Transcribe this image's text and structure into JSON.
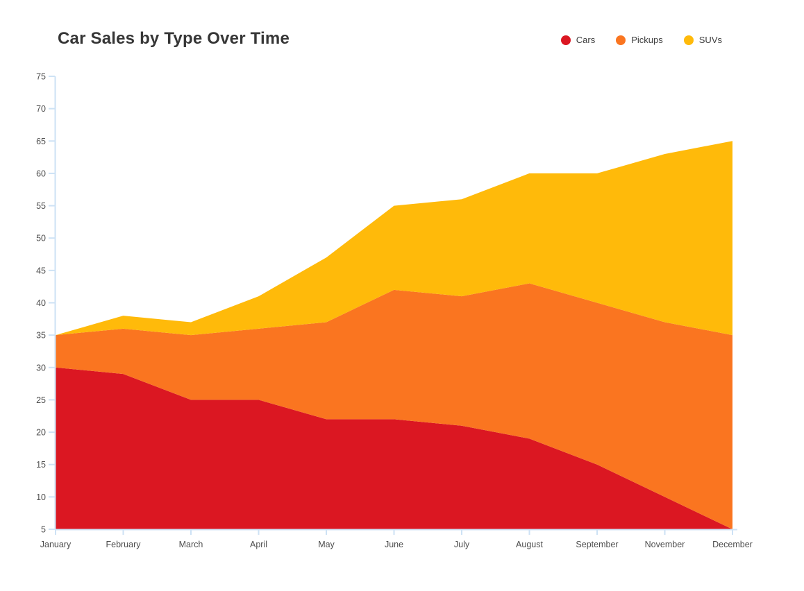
{
  "title": "Car Sales by Type Over Time",
  "legend": [
    {
      "label": "Cars",
      "color": "#DB1722"
    },
    {
      "label": "Pickups",
      "color": "#FA7520"
    },
    {
      "label": "SUVs",
      "color": "#FFBA0A"
    }
  ],
  "chart_data": {
    "type": "area",
    "stacked": true,
    "title": "Car Sales by Type Over Time",
    "categories": [
      "January",
      "February",
      "March",
      "April",
      "May",
      "June",
      "July",
      "August",
      "September",
      "November",
      "December"
    ],
    "series": [
      {
        "name": "Cars",
        "color": "#DB1722",
        "values": [
          30,
          29,
          25,
          25,
          22,
          22,
          21,
          19,
          15,
          10,
          5
        ]
      },
      {
        "name": "Pickups",
        "color": "#FA7520",
        "values": [
          5,
          7,
          10,
          11,
          15,
          20,
          20,
          24,
          25,
          27,
          30
        ]
      },
      {
        "name": "SUVs",
        "color": "#FFBA0A",
        "values": [
          0,
          2,
          2,
          5,
          10,
          13,
          15,
          17,
          20,
          26,
          30
        ]
      }
    ],
    "stack_tops": {
      "cars": [
        30,
        29,
        25,
        25,
        22,
        22,
        21,
        19,
        15,
        10,
        5
      ],
      "pickups": [
        35,
        36,
        35,
        36,
        37,
        42,
        41,
        43,
        40,
        37,
        35
      ],
      "total": [
        35,
        38,
        37,
        41,
        47,
        55,
        56,
        60,
        60,
        63,
        65
      ]
    },
    "xlabel": "",
    "ylabel": "",
    "ylim": [
      5,
      75
    ],
    "ytick_step": 5,
    "yticks": [
      5,
      10,
      15,
      20,
      25,
      30,
      35,
      40,
      45,
      50,
      55,
      60,
      65,
      70,
      75
    ],
    "grid": false,
    "legend_position": "top-right",
    "axis_color": "#CDE2F5",
    "tick_label_color": "#4d4d4d"
  }
}
